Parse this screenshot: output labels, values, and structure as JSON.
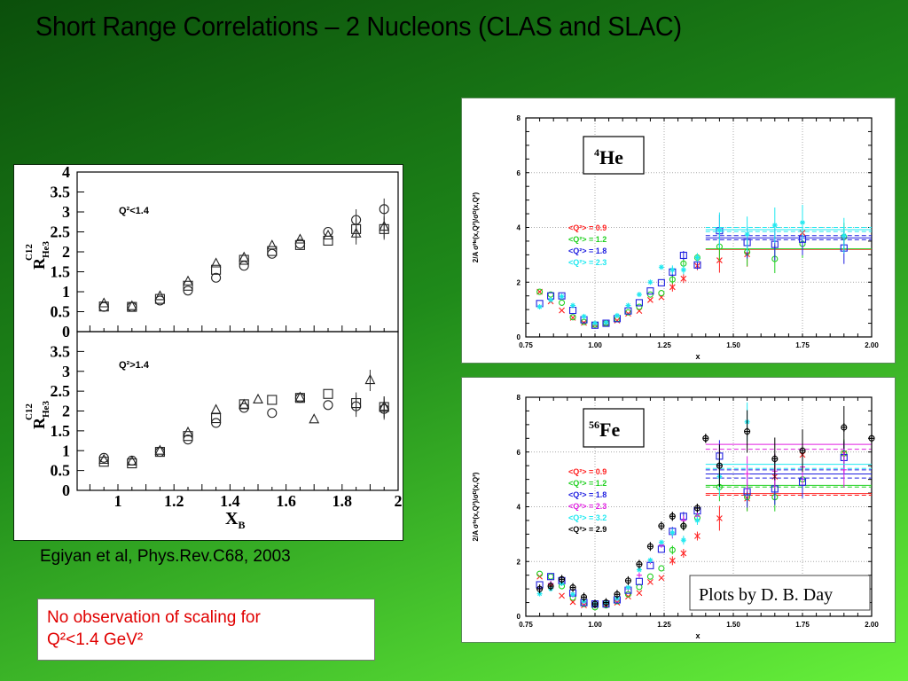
{
  "title": "Short Range Correlations – 2 Nucleons (CLAS and SLAC)",
  "caption": "Egiyan et al,  Phys.Rev.C68, 2003",
  "note": {
    "line1": "No observation of scaling for",
    "line2": "Q²<1.4 GeV²",
    "color": "#e00000"
  },
  "chart_data": [
    {
      "id": "clas-ratio",
      "type": "scatter",
      "xlabel": "X_B",
      "xlabel_main": "X",
      "xlabel_sub": "B",
      "ylabel_main": "R",
      "ylabel_sup": "C12",
      "ylabel_sub": "He3",
      "xlim": [
        0.855,
        2
      ],
      "ylim": [
        0,
        4
      ],
      "xticks": [
        "1",
        "1.2",
        "1.4",
        "1.6",
        "1.8",
        "2"
      ],
      "xtick_values": [
        1,
        1.2,
        1.4,
        1.6,
        1.8,
        2
      ],
      "panels": [
        {
          "label": "Q²<1.4",
          "yticks": [
            "0",
            "0.5",
            "1",
            "1.5",
            "2",
            "2.5",
            "3",
            "3.5",
            "4"
          ],
          "ytick_values": [
            0,
            0.5,
            1,
            1.5,
            2,
            2.5,
            3,
            3.5,
            4
          ],
          "series": [
            {
              "marker": "circle",
              "x": [
                0.95,
                1.05,
                1.15,
                1.25,
                1.35,
                1.45,
                1.55,
                1.65,
                1.75,
                1.85,
                1.95
              ],
              "y": [
                0.62,
                0.62,
                0.78,
                1.03,
                1.35,
                1.65,
                1.95,
                2.2,
                2.5,
                2.8,
                3.07
              ]
            },
            {
              "marker": "square",
              "x": [
                0.95,
                1.05,
                1.15,
                1.25,
                1.35,
                1.45,
                1.55,
                1.65,
                1.75,
                1.85,
                1.95
              ],
              "y": [
                0.63,
                0.62,
                0.82,
                1.15,
                1.55,
                1.8,
                2.02,
                2.17,
                2.28,
                2.57,
                2.57
              ]
            },
            {
              "marker": "triangle",
              "x": [
                0.95,
                1.05,
                1.15,
                1.25,
                1.35,
                1.45,
                1.55,
                1.65,
                1.75,
                1.85,
                1.95
              ],
              "y": [
                0.7,
                0.63,
                0.88,
                1.25,
                1.7,
                1.85,
                2.15,
                2.3,
                2.4,
                2.45,
                2.62
              ]
            }
          ]
        },
        {
          "label": "Q²>1.4",
          "yticks": [
            "0",
            "0.5",
            "1",
            "1.5",
            "2",
            "2.5",
            "3",
            "3.5"
          ],
          "ytick_values": [
            0,
            0.5,
            1,
            1.5,
            2,
            2.5,
            3,
            3.5
          ],
          "series": [
            {
              "marker": "circle",
              "x": [
                0.95,
                1.05,
                1.15,
                1.25,
                1.35,
                1.45,
                1.55,
                1.65,
                1.75,
                1.85,
                1.95
              ],
              "y": [
                0.82,
                0.75,
                0.97,
                1.28,
                1.7,
                2.08,
                1.95,
                2.33,
                2.15,
                2.12,
                2.05
              ]
            },
            {
              "marker": "square",
              "x": [
                0.95,
                1.05,
                1.15,
                1.25,
                1.35,
                1.45,
                1.55,
                1.65,
                1.75,
                1.85,
                1.95
              ],
              "y": [
                0.72,
                0.68,
                0.97,
                1.37,
                1.82,
                2.17,
                2.28,
                2.33,
                2.43,
                2.2,
                2.1
              ]
            },
            {
              "marker": "triangle",
              "x": [
                0.95,
                1.05,
                1.15,
                1.25,
                1.35,
                1.45,
                1.5,
                1.65,
                1.7,
                1.9,
                1.95
              ],
              "y": [
                0.76,
                0.72,
                0.99,
                1.45,
                2.02,
                2.15,
                2.28,
                2.33,
                1.78,
                2.77,
                2.1
              ]
            }
          ]
        }
      ]
    },
    {
      "id": "he4",
      "type": "scatter",
      "nucleus_mass": "4",
      "nucleus_symbol": "He",
      "xlabel": "x",
      "ylabel": "2/A σᴴᵉ(x,Q²)/σᴰ(x,Q²)",
      "xlim": [
        0.75,
        2.0
      ],
      "ylim": [
        0,
        8
      ],
      "xticks": [
        "0.75",
        "1.00",
        "1.25",
        "1.50",
        "1.75",
        "2.00"
      ],
      "xtick_values": [
        0.75,
        1,
        1.25,
        1.5,
        1.75,
        2
      ],
      "yticks": [
        "0",
        "2",
        "4",
        "6",
        "8"
      ],
      "ytick_values": [
        0,
        2,
        4,
        6,
        8
      ],
      "series": [
        {
          "name": "<Q²> = 0.9",
          "color": "#ff2020",
          "marker": "x",
          "x": [
            0.8,
            0.84,
            0.88,
            0.92,
            0.96,
            1.0,
            1.04,
            1.08,
            1.12,
            1.16,
            1.2,
            1.24,
            1.28,
            1.32,
            1.37,
            1.45,
            1.55,
            1.75
          ],
          "y": [
            1.65,
            1.3,
            0.97,
            0.7,
            0.52,
            0.45,
            0.48,
            0.6,
            0.85,
            0.95,
            1.35,
            1.45,
            1.82,
            2.13,
            2.6,
            2.8,
            3.02,
            3.8
          ],
          "levels": [
            3.2
          ]
        },
        {
          "name": "<Q²> = 1.2",
          "color": "#20d020",
          "marker": "circle",
          "x": [
            0.8,
            0.84,
            0.88,
            0.92,
            0.96,
            1.0,
            1.04,
            1.08,
            1.12,
            1.16,
            1.2,
            1.24,
            1.28,
            1.32,
            1.37,
            1.45,
            1.55,
            1.65,
            1.75,
            1.9
          ],
          "y": [
            1.65,
            1.55,
            1.25,
            0.72,
            0.55,
            0.45,
            0.5,
            0.65,
            0.9,
            1.1,
            1.55,
            1.6,
            2.1,
            2.68,
            2.9,
            3.3,
            3.1,
            2.85,
            3.4,
            3.65
          ],
          "levels": [
            3.22
          ]
        },
        {
          "name": "<Q²> = 1.8",
          "color": "#2020e0",
          "marker": "square",
          "x": [
            0.8,
            0.84,
            0.88,
            0.92,
            0.96,
            1.0,
            1.04,
            1.08,
            1.12,
            1.16,
            1.2,
            1.24,
            1.28,
            1.32,
            1.37,
            1.45,
            1.55,
            1.65,
            1.75,
            1.9
          ],
          "y": [
            1.22,
            1.5,
            1.5,
            0.97,
            0.63,
            0.43,
            0.5,
            0.67,
            0.95,
            1.25,
            1.68,
            1.98,
            2.37,
            2.98,
            2.63,
            3.88,
            3.45,
            3.38,
            3.57,
            3.25
          ],
          "levels": [
            3.55,
            3.62,
            3.7
          ]
        },
        {
          "name": "<Q²> = 2.3",
          "color": "#20e8f0",
          "marker": "star",
          "x": [
            0.8,
            0.84,
            0.88,
            0.92,
            0.96,
            1.0,
            1.04,
            1.08,
            1.12,
            1.16,
            1.2,
            1.24,
            1.28,
            1.32,
            1.37,
            1.45,
            1.55,
            1.65,
            1.75,
            1.9
          ],
          "y": [
            1.1,
            1.35,
            1.48,
            1.15,
            0.75,
            0.5,
            0.52,
            0.78,
            1.15,
            1.55,
            2.0,
            2.55,
            2.45,
            2.45,
            2.9,
            3.9,
            3.75,
            4.08,
            4.18,
            3.7
          ],
          "levels": [
            3.85,
            3.92,
            4.0
          ]
        }
      ]
    },
    {
      "id": "fe56",
      "type": "scatter",
      "nucleus_mass": "56",
      "nucleus_symbol": "Fe",
      "credit": "Plots by D. B. Day",
      "xlabel": "x",
      "ylabel": "2/A σᶠᵉ(x,Q²)/σᴰ(x,Q²)",
      "xlim": [
        0.75,
        2.0
      ],
      "ylim": [
        0,
        8
      ],
      "xticks": [
        "0.75",
        "1.00",
        "1.25",
        "1.50",
        "1.75",
        "2.00"
      ],
      "xtick_values": [
        0.75,
        1,
        1.25,
        1.5,
        1.75,
        2
      ],
      "yticks": [
        "0",
        "2",
        "4",
        "6",
        "8"
      ],
      "ytick_values": [
        0,
        2,
        4,
        6,
        8
      ],
      "series": [
        {
          "name": "<Q²> = 0.9",
          "color": "#ff2020",
          "marker": "x",
          "x": [
            0.8,
            0.84,
            0.88,
            0.92,
            0.96,
            1.0,
            1.04,
            1.08,
            1.12,
            1.16,
            1.2,
            1.24,
            1.28,
            1.32,
            1.37,
            1.45,
            1.55,
            1.65,
            1.75,
            1.9
          ],
          "y": [
            1.45,
            1.1,
            0.75,
            0.52,
            0.4,
            0.4,
            0.42,
            0.5,
            0.72,
            0.85,
            1.25,
            1.4,
            2.03,
            2.3,
            2.93,
            3.58,
            4.3,
            5.1,
            5.9,
            5.95
          ],
          "levels": [
            4.42,
            4.48
          ]
        },
        {
          "name": "<Q²> = 1.2",
          "color": "#20d020",
          "marker": "circle",
          "x": [
            0.8,
            0.84,
            0.88,
            0.92,
            0.96,
            1.0,
            1.04,
            1.08,
            1.12,
            1.16,
            1.2,
            1.24,
            1.28,
            1.32,
            1.37,
            1.45,
            1.55,
            1.65,
            1.75,
            1.9
          ],
          "y": [
            1.55,
            1.45,
            1.1,
            0.68,
            0.45,
            0.33,
            0.4,
            0.55,
            0.8,
            1.07,
            1.45,
            1.75,
            2.42,
            3.3,
            3.6,
            4.72,
            4.35,
            4.35,
            5.0,
            5.95
          ],
          "levels": [
            4.72,
            4.78
          ]
        },
        {
          "name": "<Q²> = 1.8",
          "color": "#2020e0",
          "marker": "square",
          "x": [
            0.8,
            0.84,
            0.88,
            0.92,
            0.96,
            1.0,
            1.04,
            1.08,
            1.12,
            1.16,
            1.2,
            1.24,
            1.28,
            1.32,
            1.37,
            1.45,
            1.55,
            1.65,
            1.75,
            1.9
          ],
          "y": [
            1.15,
            1.45,
            1.3,
            0.85,
            0.5,
            0.45,
            0.45,
            0.6,
            0.95,
            1.27,
            1.85,
            2.45,
            3.1,
            3.65,
            3.85,
            5.85,
            4.55,
            4.65,
            4.9,
            5.8
          ],
          "levels": [
            5.05,
            5.2,
            5.35
          ]
        },
        {
          "name": "<Q²> = 2.3",
          "color": "#e020e0",
          "marker": "plus",
          "x": [
            0.8,
            0.84,
            0.88,
            0.92,
            0.96,
            1.0,
            1.04,
            1.08,
            1.12,
            1.16,
            1.2,
            1.24,
            1.28,
            1.32,
            1.37,
            1.45,
            1.55,
            1.65,
            1.75,
            1.9
          ],
          "y": [
            1.0,
            1.2,
            1.25,
            0.78,
            0.5,
            0.42,
            0.45,
            0.6,
            1.0,
            1.5,
            2.0,
            2.6,
            3.0,
            3.5,
            3.65,
            5.5,
            5.2,
            5.3,
            5.45,
            5.35
          ],
          "levels": [
            6.1,
            6.28
          ]
        },
        {
          "name": "<Q²> = 3.2",
          "color": "#20e8f0",
          "marker": "star",
          "x": [
            0.8,
            0.84,
            0.88,
            0.92,
            0.96,
            1.0,
            1.04,
            1.08,
            1.12,
            1.16,
            1.2,
            1.24,
            1.28,
            1.32,
            1.37,
            1.45,
            1.55
          ],
          "y": [
            0.82,
            1.0,
            1.2,
            0.8,
            0.55,
            0.45,
            0.5,
            0.65,
            1.05,
            1.7,
            2.05,
            2.7,
            3.05,
            2.78,
            3.5,
            5.1,
            7.1
          ],
          "levels": [
            5.4,
            5.55
          ]
        },
        {
          "name": "<Q²> = 2.9",
          "color": "#000000",
          "marker": "oplus",
          "x": [
            0.8,
            0.84,
            0.88,
            0.92,
            0.96,
            1.0,
            1.04,
            1.08,
            1.12,
            1.16,
            1.2,
            1.24,
            1.28,
            1.32,
            1.37,
            1.4,
            1.45,
            1.55,
            1.65,
            1.75,
            1.9,
            2.0
          ],
          "y": [
            1.0,
            1.1,
            1.35,
            1.05,
            0.7,
            0.45,
            0.5,
            0.8,
            1.3,
            1.9,
            2.55,
            3.3,
            3.65,
            3.3,
            3.95,
            6.5,
            5.5,
            6.75,
            5.75,
            6.05,
            6.9,
            6.5
          ],
          "levels": []
        }
      ]
    }
  ]
}
